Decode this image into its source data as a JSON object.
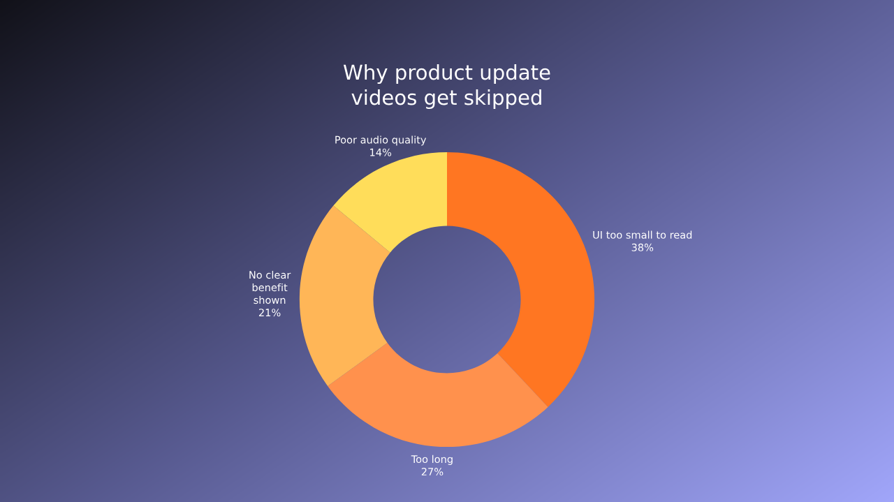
{
  "chart_data": {
    "type": "donut",
    "title": "Why product update\nvideos get skipped",
    "categories": [
      "UI too small to read",
      "Too long",
      "No clear\nbenefit\nshown",
      "Poor audio quality"
    ],
    "values": [
      38,
      27,
      21,
      14
    ],
    "value_labels": [
      "38%",
      "27%",
      "21%",
      "14%"
    ],
    "colors": [
      "#ff7622",
      "#ff914d",
      "#ffb657",
      "#ffdd5a"
    ]
  }
}
